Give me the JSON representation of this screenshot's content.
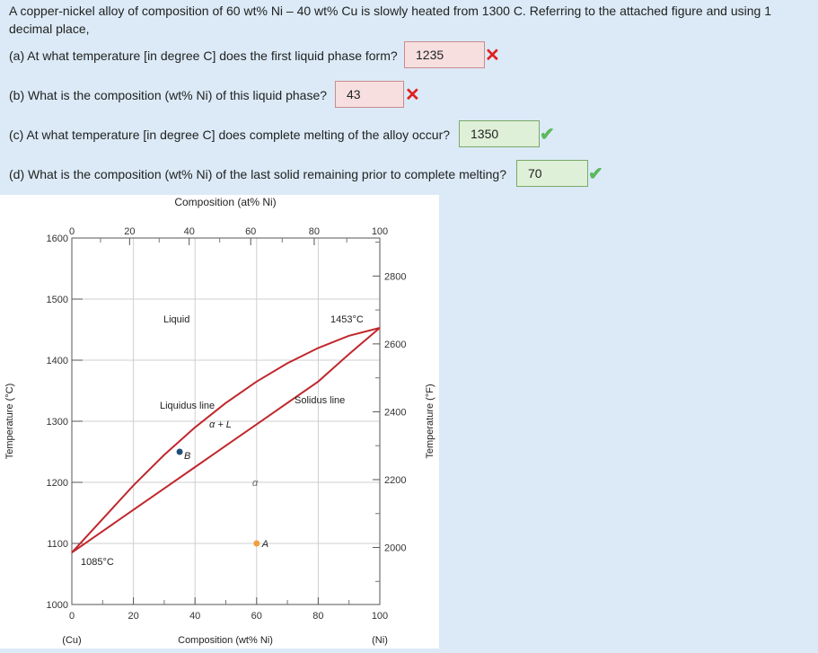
{
  "intro": "A copper-nickel alloy of composition of 60 wt% Ni – 40 wt% Cu is slowly heated from 1300 C. Referring to the attached figure and using 1 decimal place,",
  "questions": [
    {
      "text": "(a) At what temperature [in degree C] does the first liquid phase form?",
      "answer": "1235",
      "status": "incorrect",
      "mark": "✕"
    },
    {
      "text": "(b) What is the composition (wt% Ni) of this liquid phase?",
      "answer": "43",
      "status": "incorrect",
      "mark": "✕"
    },
    {
      "text": "(c) At what temperature [in degree C] does complete melting of the alloy occur?",
      "answer": "1350",
      "status": "correct",
      "mark": "✔"
    },
    {
      "text": "(d) What is the composition (wt% Ni) of the last solid remaining prior to complete melting?",
      "answer": "70",
      "status": "correct",
      "mark": "✔"
    }
  ],
  "figure": {
    "top_axis_title": "Composition (at% Ni)",
    "bottom_axis_title": "Composition (wt% Ni)",
    "left_axis_title": "Temperature (°C)",
    "right_axis_title": "Temperature (°F)",
    "top_ticks": [
      "0",
      "20",
      "40",
      "60",
      "80",
      "100"
    ],
    "bottom_ticks": [
      "0",
      "20",
      "40",
      "60",
      "80",
      "100"
    ],
    "left_ticks": [
      "1600",
      "1500",
      "1400",
      "1300",
      "1200",
      "1100",
      "1000"
    ],
    "right_ticks": [
      "2800",
      "2600",
      "2400",
      "2200",
      "2000"
    ],
    "cu_label": "(Cu)",
    "ni_label": "(Ni)",
    "cu_melting": "1085°C",
    "ni_melting": "1453°C",
    "liquid_label": "Liquid",
    "liquidus_label": "Liquidus line",
    "solidus_label": "Solidus line",
    "two_phase_label": "α + L",
    "alpha_label": "α",
    "point_a": "A",
    "point_b": "B",
    "curve_color": "#c0272d",
    "point_a_color": "#f0a040",
    "point_b_color": "#1f4e79"
  },
  "chart_data": {
    "type": "line",
    "title": "",
    "xlabel": "Composition (wt% Ni)",
    "ylabel": "Temperature (°C)",
    "xlim": [
      0,
      100
    ],
    "ylim": [
      1000,
      1600
    ],
    "series": [
      {
        "name": "Liquidus line",
        "x": [
          0,
          10,
          20,
          30,
          40,
          50,
          60,
          70,
          80,
          90,
          100
        ],
        "y": [
          1085,
          1140,
          1195,
          1245,
          1290,
          1330,
          1365,
          1395,
          1420,
          1440,
          1453
        ]
      },
      {
        "name": "Solidus line",
        "x": [
          0,
          10,
          20,
          30,
          40,
          50,
          60,
          70,
          80,
          90,
          100
        ],
        "y": [
          1085,
          1120,
          1155,
          1190,
          1225,
          1260,
          1295,
          1330,
          1365,
          1410,
          1453
        ]
      }
    ],
    "points": [
      {
        "label": "A",
        "x": 60,
        "y": 1100
      },
      {
        "label": "B",
        "x": 35,
        "y": 1250
      }
    ]
  }
}
